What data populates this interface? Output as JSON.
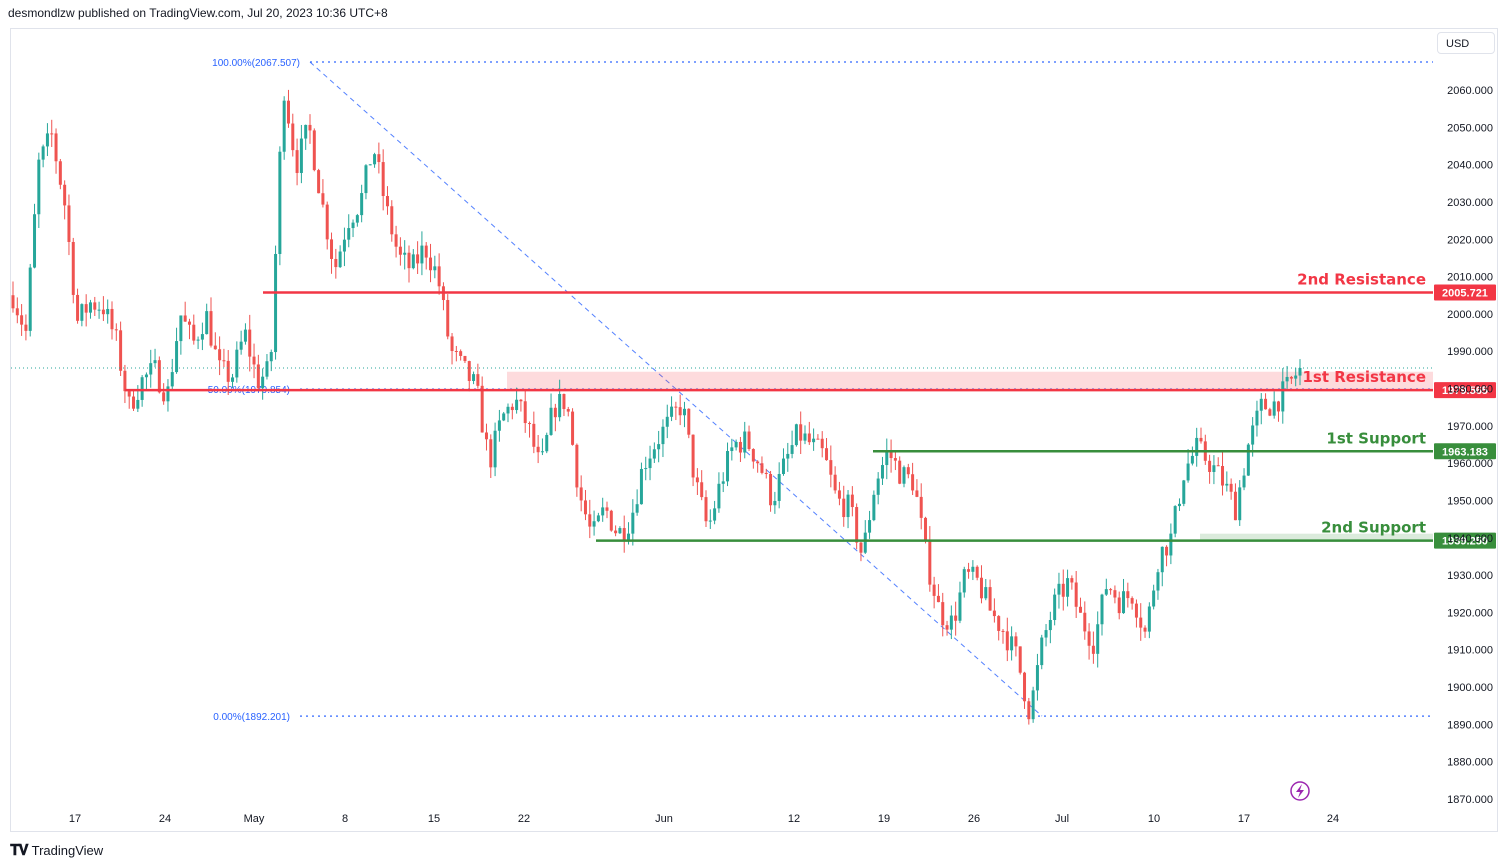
{
  "header": {
    "published_text": "desmondlzw published on TradingView.com, Jul 20, 2023 10:36 UTC+8"
  },
  "currency_button": {
    "label": "USD"
  },
  "footer": {
    "brand": "TradingView",
    "logo_icon": "tradingview-logo-icon"
  },
  "colors": {
    "up": "#26a69a",
    "down": "#ef5350",
    "resistance": "#f23645",
    "support": "#388e3c",
    "fib": "#2962ff"
  },
  "chart_data": {
    "type": "candlestick",
    "y_axis_ticks": [
      2060,
      2050,
      2040,
      2030,
      2020,
      2010,
      2000,
      1990,
      1980,
      1970,
      1960,
      1950,
      1940,
      1930,
      1920,
      1910,
      1900,
      1890,
      1880,
      1870
    ],
    "y_tick_labels": [
      "2060.000",
      "2050.000",
      "2040.000",
      "2030.000",
      "2020.000",
      "2010.000",
      "2000.000",
      "1990.000",
      "1980.000",
      "1970.000",
      "1960.000",
      "1950.000",
      "1940.000",
      "1930.000",
      "1920.000",
      "1910.000",
      "1900.000",
      "1890.000",
      "1880.000",
      "1870.000"
    ],
    "ylim": [
      1866,
      2075
    ],
    "x_axis_labels": [
      "17",
      "24",
      "May",
      "8",
      "15",
      "22",
      "Jun",
      "12",
      "19",
      "26",
      "Jul",
      "10",
      "17",
      "24"
    ],
    "levels": [
      {
        "label": "2nd Resistance",
        "value": 2005.721,
        "value_label": "2005.721",
        "kind": "resistance"
      },
      {
        "label": "1st Resistance",
        "value": 1979.565,
        "value_label": "1979.565",
        "kind": "resistance"
      },
      {
        "label": "1st Support",
        "value": 1963.183,
        "value_label": "1963.183",
        "kind": "support"
      },
      {
        "label": "2nd Support",
        "value": 1939.25,
        "value_label": "1939.250",
        "kind": "support"
      }
    ],
    "fibonacci": [
      {
        "label": "100.00%(2067.507)",
        "value": 2067.507
      },
      {
        "label": "50.00%(1979.854)",
        "value": 1979.854
      },
      {
        "label": "0.00%(1892.201)",
        "value": 1892.201
      }
    ],
    "last_price": 1985.5,
    "price_path": [
      2005,
      1995,
      2040,
      2048,
      2030,
      1998,
      2003,
      2002,
      1993,
      1975,
      1982,
      1985,
      1978,
      2000,
      1992,
      2000,
      1985,
      1983,
      1995,
      1982,
      1985,
      2062,
      2040,
      2050,
      2030,
      2012,
      2025,
      2030,
      2045,
      2028,
      2015,
      2012,
      2018,
      2010,
      1990,
      1985,
      1980,
      1960,
      1972,
      1977,
      1970,
      1958,
      1975,
      1977,
      1952,
      1940,
      1948,
      1941,
      1945,
      1960,
      1966,
      1971,
      1976,
      1955,
      1942,
      1955,
      1965,
      1966,
      1960,
      1950,
      1960,
      1968,
      1965,
      1962,
      1950,
      1948,
      1935,
      1955,
      1963,
      1957,
      1955,
      1934,
      1920,
      1917,
      1930,
      1928,
      1920,
      1915,
      1908,
      1893,
      1912,
      1923,
      1928,
      1918,
      1912,
      1928,
      1923,
      1925,
      1914,
      1935,
      1940,
      1958,
      1964,
      1960,
      1955,
      1948,
      1965,
      1975,
      1976,
      1980,
      1985.5
    ]
  }
}
